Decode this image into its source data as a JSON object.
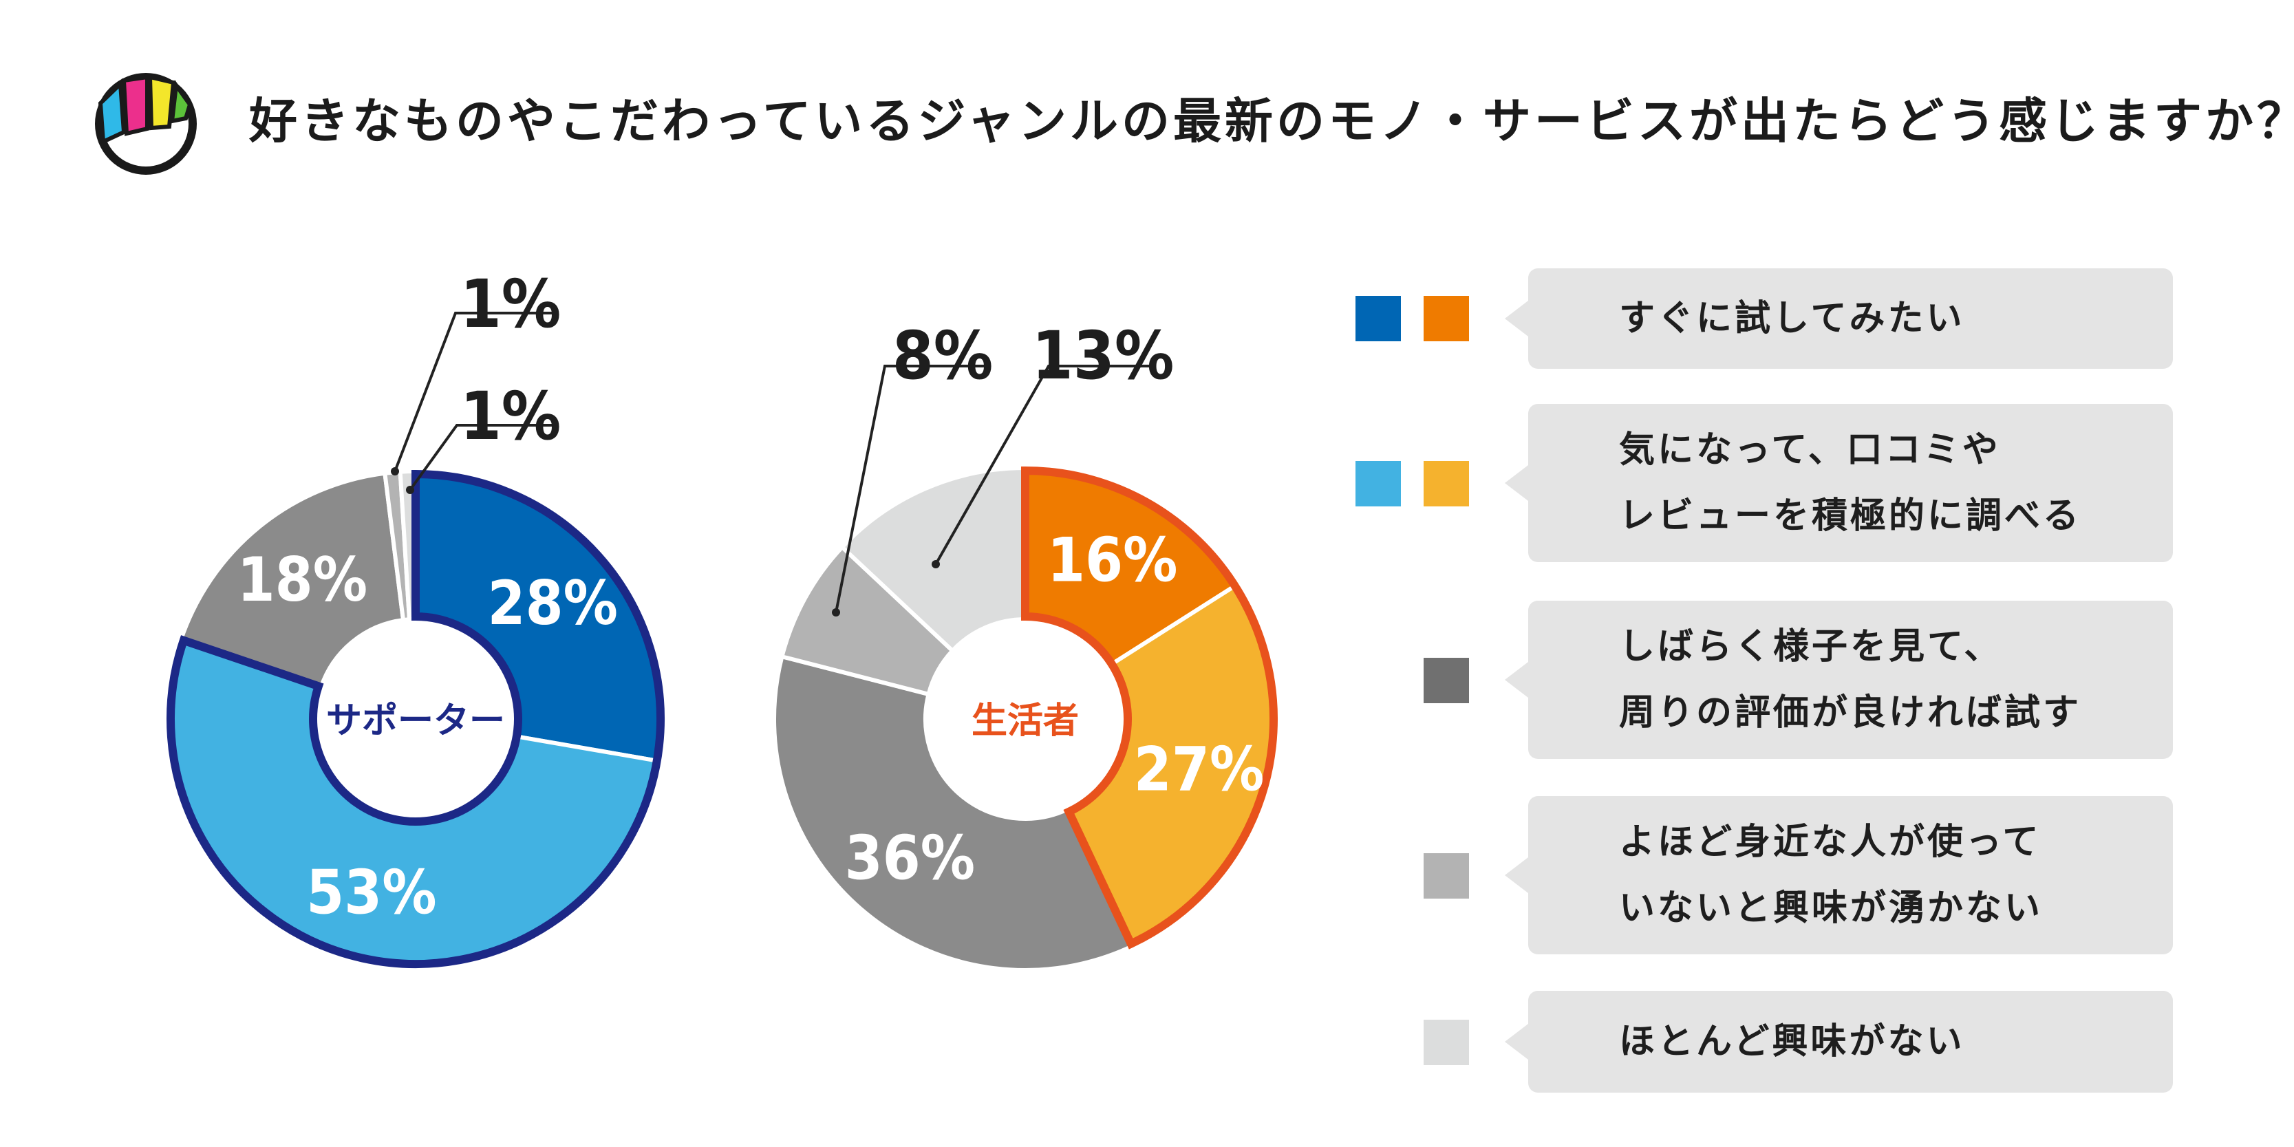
{
  "title": "好きなものやこだわっているジャンルの最新のモノ・サービスが出たらどう感じますか？",
  "legend": [
    {
      "lines": [
        "すぐに試してみたい"
      ],
      "colors": [
        "#0066B4",
        "#EF7B00"
      ]
    },
    {
      "lines": [
        "気になって、口コミや",
        "レビューを積極的に調べる"
      ],
      "colors": [
        "#42B2E2",
        "#F5B22E"
      ]
    },
    {
      "lines": [
        "しばらく様子を見て、",
        "周りの評価が良ければ試す"
      ],
      "colors": [
        "#707070"
      ]
    },
    {
      "lines": [
        "よほど身近な人が使って",
        "いないと興味が湧かない"
      ],
      "colors": [
        "#B3B3B3"
      ]
    },
    {
      "lines": [
        "ほとんど興味がない"
      ],
      "colors": [
        "#DCDDDD"
      ]
    }
  ],
  "chart_data": [
    {
      "type": "pie",
      "center_label": "サポーター",
      "center_color": "#1C2886",
      "slices": [
        {
          "label": "28%",
          "value": 28,
          "color": "#0066B4",
          "text_color": "#ffffff"
        },
        {
          "label": "53%",
          "value": 53,
          "color": "#42B2E2",
          "text_color": "#ffffff"
        },
        {
          "label": "18%",
          "value": 18,
          "color": "#8B8B8B",
          "text_color": "#ffffff"
        },
        {
          "label": "1%",
          "value": 1,
          "color": "#B3B3B3",
          "text_color": "#1e1e1e"
        },
        {
          "label": "1%",
          "value": 1,
          "color": "#DCDDDD",
          "text_color": "#1e1e1e"
        }
      ],
      "highlight_color": "#1C2886"
    },
    {
      "type": "pie",
      "center_label": "生活者",
      "center_color": "#E8521C",
      "slices": [
        {
          "label": "16%",
          "value": 16,
          "color": "#EF7B00",
          "text_color": "#ffffff"
        },
        {
          "label": "27%",
          "value": 27,
          "color": "#F5B22E",
          "text_color": "#ffffff"
        },
        {
          "label": "36%",
          "value": 36,
          "color": "#8B8B8B",
          "text_color": "#ffffff"
        },
        {
          "label": "8%",
          "value": 8,
          "color": "#B3B3B3",
          "text_color": "#1e1e1e"
        },
        {
          "label": "13%",
          "value": 13,
          "color": "#DCDDDD",
          "text_color": "#1e1e1e"
        }
      ],
      "highlight_color": "#E8521C"
    }
  ]
}
